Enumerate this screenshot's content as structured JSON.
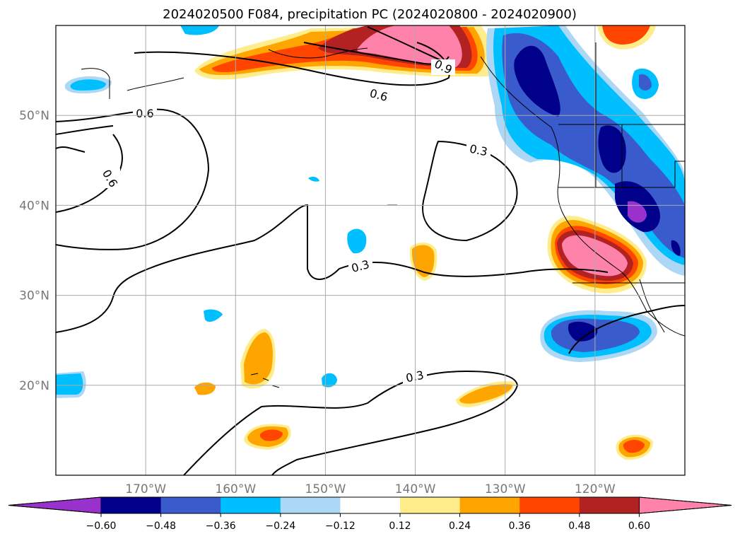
{
  "title": "2024020500 F084, precipitation PC (2024020800 - 2024020900)",
  "map": {
    "lon_range": [
      -180,
      -110
    ],
    "lat_range": [
      10,
      60
    ],
    "lon_ticks": [
      {
        "value": -170,
        "label": "170°W"
      },
      {
        "value": -160,
        "label": "160°W"
      },
      {
        "value": -150,
        "label": "150°W"
      },
      {
        "value": -140,
        "label": "140°W"
      },
      {
        "value": -130,
        "label": "130°W"
      },
      {
        "value": -120,
        "label": "120°W"
      }
    ],
    "lat_ticks": [
      {
        "value": 20,
        "label": "20°N"
      },
      {
        "value": 30,
        "label": "30°N"
      },
      {
        "value": 40,
        "label": "40°N"
      },
      {
        "value": 50,
        "label": "50°N"
      }
    ],
    "grid": true,
    "contour_labels": [
      "0.6",
      "0.6",
      "0.6",
      "0.9",
      "0.3",
      "0.3",
      "0.3"
    ]
  },
  "colorbar": {
    "ticks": [
      "−0.60",
      "−0.48",
      "−0.36",
      "−0.24",
      "−0.12",
      "0.12",
      "0.24",
      "0.36",
      "0.48",
      "0.60"
    ],
    "colors": [
      "#9932cc",
      "#00008b",
      "#3a5bcc",
      "#00bfff",
      "#add8f5",
      "#ffffff",
      "#ffec8b",
      "#ffa500",
      "#ff4500",
      "#b22222",
      "#ff82ab"
    ]
  },
  "colors": {
    "purple": "#9932cc",
    "navy": "#00008b",
    "royal": "#3a5bcc",
    "deepsky": "#00bfff",
    "lightblue": "#add8f5",
    "yellow": "#ffec8b",
    "orange": "#ffa500",
    "orangered": "#ff4500",
    "firebrick": "#b22222",
    "pink": "#ff82ab"
  }
}
